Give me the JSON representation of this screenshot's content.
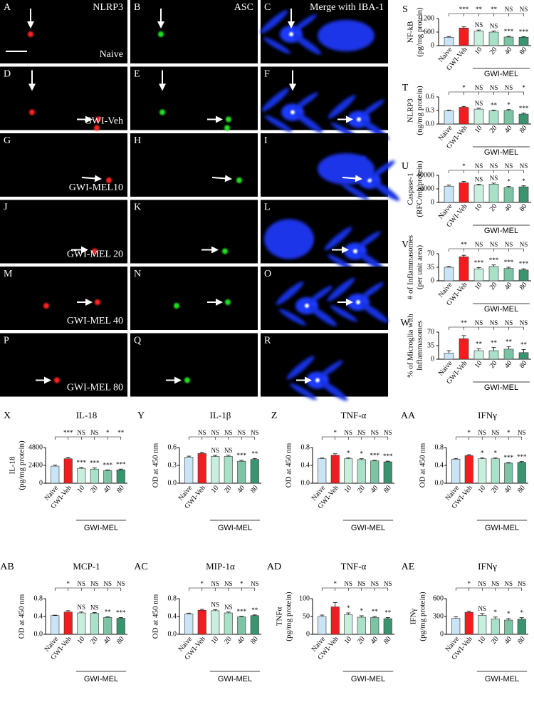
{
  "micrographs": {
    "column_labels": [
      "NLRP3",
      "ASC",
      "Merge with IBA-1"
    ],
    "row_labels": [
      "Naive",
      "GWI-Veh",
      "GWI-MEL10",
      "GWI-MEL 20",
      "GWI-MEL 40",
      "GWI-MEL 80"
    ],
    "panels": [
      [
        "A",
        "B",
        "C"
      ],
      [
        "D",
        "E",
        "F"
      ],
      [
        "G",
        "H",
        "I"
      ],
      [
        "J",
        "K",
        "L"
      ],
      [
        "M",
        "N",
        "O"
      ],
      [
        "P",
        "Q",
        "R"
      ]
    ]
  },
  "chart_data": [
    {
      "type": "bar",
      "letter": "S",
      "ylabel": [
        "NF-kB",
        "(pg/mg protein)"
      ],
      "categories": [
        "Naive",
        "GWI-Veh",
        "10",
        "20",
        "40",
        "80"
      ],
      "group_label": "GWI-MEL",
      "values": [
        370,
        780,
        640,
        600,
        380,
        370
      ],
      "errors": [
        35,
        50,
        50,
        50,
        30,
        30
      ],
      "colors": [
        "#c9e4f6",
        "#f01e1e",
        "#c8eedd",
        "#a9e0c8",
        "#7cc4a4",
        "#3b9470"
      ],
      "ylim": [
        0,
        1200
      ],
      "yticks": [
        0,
        600,
        1200
      ],
      "sig_top": [
        "***",
        "**",
        "**",
        "NS",
        "NS"
      ],
      "sig_bar": [
        "NS",
        "NS",
        "***",
        "***"
      ]
    },
    {
      "type": "bar",
      "letter": "T",
      "ylabel": [
        "NLRP3",
        "(ng/mg protein)"
      ],
      "categories": [
        "Naive",
        "GWI-Veh",
        "10",
        "20",
        "40",
        "80"
      ],
      "group_label": "GWI-MEL",
      "values": [
        0.29,
        0.37,
        0.33,
        0.29,
        0.3,
        0.22
      ],
      "errors": [
        0.02,
        0.02,
        0.02,
        0.02,
        0.02,
        0.02
      ],
      "colors": [
        "#c9e4f6",
        "#f01e1e",
        "#c8eedd",
        "#a9e0c8",
        "#7cc4a4",
        "#3b9470"
      ],
      "ylim": [
        0,
        0.6
      ],
      "yticks": [
        {
          "value": 0,
          "label": "0.0"
        },
        0.3,
        0.6
      ],
      "sig_top": [
        "*",
        "NS",
        "NS",
        "NS",
        "*"
      ],
      "sig_bar": [
        "NS",
        "**",
        "*",
        "***"
      ]
    },
    {
      "type": "bar",
      "letter": "U",
      "ylabel": [
        "Caspase-1",
        "(RFC/mg protein)"
      ],
      "categories": [
        "Naive",
        "GWI-Veh",
        "10",
        "20",
        "40",
        "80"
      ],
      "group_label": "GWI-MEL",
      "values": [
        24000,
        29000,
        25500,
        27000,
        22000,
        23000
      ],
      "errors": [
        1500,
        2000,
        1500,
        1500,
        1500,
        1500
      ],
      "colors": [
        "#c9e4f6",
        "#f01e1e",
        "#c8eedd",
        "#a9e0c8",
        "#7cc4a4",
        "#3b9470"
      ],
      "ylim": [
        0,
        40000
      ],
      "yticks": [
        0,
        20000,
        40000
      ],
      "sig_top": [
        "*",
        "NS",
        "NS",
        "NS",
        "NS"
      ],
      "sig_bar": [
        "NS",
        "NS",
        "*",
        "*"
      ]
    },
    {
      "type": "bar",
      "letter": "V",
      "ylabel": [
        "# of Inflammasomes",
        "(per unit area)"
      ],
      "categories": [
        "Naive",
        "GWI-Veh",
        "10",
        "20",
        "40",
        "80"
      ],
      "group_label": "GWI-MEL",
      "values": [
        35,
        62,
        31,
        37,
        32,
        28
      ],
      "errors": [
        2,
        4,
        3,
        4,
        3,
        3
      ],
      "colors": [
        "#c9e4f6",
        "#f01e1e",
        "#c8eedd",
        "#a9e0c8",
        "#7cc4a4",
        "#3b9470"
      ],
      "ylim": [
        0,
        70
      ],
      "yticks": [
        0,
        35,
        70
      ],
      "sig_top": [
        "**",
        "NS",
        "NS",
        "NS",
        "NS"
      ],
      "sig_bar": [
        "***",
        "***",
        "***",
        "***"
      ]
    },
    {
      "type": "bar",
      "letter": "W",
      "ylabel": [
        "% of Microglia with",
        "Inflammasomes"
      ],
      "categories": [
        "Naive",
        "GWI-Veh",
        "10",
        "20",
        "40",
        "80"
      ],
      "group_label": "GWI-MEL",
      "values": [
        16,
        53,
        22,
        22,
        26,
        17
      ],
      "errors": [
        6,
        8,
        5,
        8,
        6,
        8
      ],
      "colors": [
        "#c9e4f6",
        "#f01e1e",
        "#c8eedd",
        "#a9e0c8",
        "#7cc4a4",
        "#3b9470"
      ],
      "ylim": [
        0,
        70
      ],
      "yticks": [
        0,
        35,
        70
      ],
      "sig_top": [
        "**",
        "NS",
        "NS",
        "NS",
        "NS"
      ],
      "sig_bar": [
        "**",
        "**",
        "**",
        "**"
      ]
    },
    {
      "type": "bar",
      "letter": "X",
      "title": "IL-18",
      "ylabel": [
        "IL-18",
        "(pg/mg protein)"
      ],
      "categories": [
        "Naive",
        "GWI-Veh",
        "10",
        "20",
        "40",
        "80"
      ],
      "group_label": "GWI-MEL",
      "values": [
        2300,
        3300,
        2000,
        1900,
        1700,
        1800
      ],
      "errors": [
        150,
        200,
        120,
        150,
        100,
        100
      ],
      "colors": [
        "#c9e4f6",
        "#f01e1e",
        "#c8eedd",
        "#a9e0c8",
        "#7cc4a4",
        "#3b9470"
      ],
      "ylim": [
        0,
        4800
      ],
      "yticks": [
        0,
        2400,
        4800
      ],
      "sig_top": [
        "***",
        "NS",
        "NS",
        "*",
        "**"
      ],
      "sig_bar": [
        "***",
        "***",
        "***",
        "***"
      ]
    },
    {
      "type": "bar",
      "letter": "Y",
      "title": "IL-1β",
      "ylabel": [
        "OD at 450 nm"
      ],
      "categories": [
        "Naive",
        "GWI-Veh",
        "10",
        "20",
        "40",
        "80"
      ],
      "group_label": "GWI-MEL",
      "values": [
        0.44,
        0.5,
        0.45,
        0.45,
        0.37,
        0.4
      ],
      "errors": [
        0.015,
        0.02,
        0.02,
        0.02,
        0.015,
        0.015
      ],
      "colors": [
        "#c9e4f6",
        "#f01e1e",
        "#c8eedd",
        "#a9e0c8",
        "#7cc4a4",
        "#3b9470"
      ],
      "ylim": [
        0,
        0.6
      ],
      "yticks": [
        {
          "value": 0,
          "label": "0.0"
        },
        0.3,
        0.6
      ],
      "sig_top": [
        "NS",
        "NS",
        "NS",
        "NS",
        "NS"
      ],
      "sig_bar": [
        "NS",
        "NS",
        "***",
        "**"
      ]
    },
    {
      "type": "bar",
      "letter": "Z",
      "title": "TNF-α",
      "ylabel": [
        "OD at 450 nm"
      ],
      "categories": [
        "Naive",
        "GWI-Veh",
        "10",
        "20",
        "40",
        "80"
      ],
      "group_label": "GWI-MEL",
      "values": [
        0.55,
        0.63,
        0.55,
        0.53,
        0.5,
        0.48
      ],
      "errors": [
        0.015,
        0.03,
        0.02,
        0.02,
        0.015,
        0.015
      ],
      "colors": [
        "#c9e4f6",
        "#f01e1e",
        "#c8eedd",
        "#a9e0c8",
        "#7cc4a4",
        "#3b9470"
      ],
      "ylim": [
        0,
        0.8
      ],
      "yticks": [
        {
          "value": 0,
          "label": "0.0"
        },
        0.4,
        0.8
      ],
      "sig_top": [
        "*",
        "NS",
        "NS",
        "NS",
        "NS"
      ],
      "sig_bar": [
        "*",
        "*",
        "***",
        "***"
      ]
    },
    {
      "type": "bar",
      "letter": "AA",
      "title": "IFNγ",
      "ylabel": [
        "OD at 450 nm"
      ],
      "categories": [
        "Naive",
        "GWI-Veh",
        "10",
        "20",
        "40",
        "80"
      ],
      "group_label": "GWI-MEL",
      "values": [
        0.54,
        0.62,
        0.55,
        0.55,
        0.45,
        0.47
      ],
      "errors": [
        0.015,
        0.02,
        0.02,
        0.02,
        0.015,
        0.015
      ],
      "colors": [
        "#c9e4f6",
        "#f01e1e",
        "#c8eedd",
        "#a9e0c8",
        "#7cc4a4",
        "#3b9470"
      ],
      "ylim": [
        0,
        0.8
      ],
      "yticks": [
        {
          "value": 0,
          "label": "0.0"
        },
        0.4,
        0.8
      ],
      "sig_top": [
        "*",
        "NS",
        "NS",
        "*",
        "NS"
      ],
      "sig_bar": [
        "*",
        "*",
        "***",
        "***"
      ]
    },
    {
      "type": "bar",
      "letter": "AB",
      "title": "MCP-1",
      "ylabel": [
        "OD at 450 nm"
      ],
      "categories": [
        "Naive",
        "GWI-Veh",
        "10",
        "20",
        "40",
        "80"
      ],
      "group_label": "GWI-MEL",
      "values": [
        0.42,
        0.5,
        0.48,
        0.47,
        0.38,
        0.36
      ],
      "errors": [
        0.01,
        0.03,
        0.02,
        0.02,
        0.015,
        0.015
      ],
      "colors": [
        "#c9e4f6",
        "#f01e1e",
        "#c8eedd",
        "#a9e0c8",
        "#7cc4a4",
        "#3b9470"
      ],
      "ylim": [
        0,
        0.8
      ],
      "yticks": [
        {
          "value": 0,
          "label": "0.0"
        },
        0.4,
        0.8
      ],
      "sig_top": [
        "*",
        "NS",
        "NS",
        "NS",
        "NS"
      ],
      "sig_bar": [
        "NS",
        "NS",
        "**",
        "***"
      ]
    },
    {
      "type": "bar",
      "letter": "AC",
      "title": "MIP-1α",
      "ylabel": [
        "OD at 450 nm"
      ],
      "categories": [
        "Naive",
        "GWI-Veh",
        "10",
        "20",
        "40",
        "80"
      ],
      "group_label": "GWI-MEL",
      "values": [
        0.46,
        0.54,
        0.53,
        0.48,
        0.39,
        0.42
      ],
      "errors": [
        0.015,
        0.02,
        0.02,
        0.02,
        0.015,
        0.015
      ],
      "colors": [
        "#c9e4f6",
        "#f01e1e",
        "#c8eedd",
        "#a9e0c8",
        "#7cc4a4",
        "#3b9470"
      ],
      "ylim": [
        0,
        0.8
      ],
      "yticks": [
        {
          "value": 0,
          "label": "0.0"
        },
        0.4,
        0.8
      ],
      "sig_top": [
        "*",
        "NS",
        "NS",
        "*",
        "NS"
      ],
      "sig_bar": [
        "NS",
        "NS",
        "***",
        "**"
      ]
    },
    {
      "type": "bar",
      "letter": "AD",
      "title": "TNF-α",
      "ylabel": [
        "TNFα",
        "(pg/mg protein)"
      ],
      "categories": [
        "Naive",
        "GWI-Veh",
        "10",
        "20",
        "40",
        "80"
      ],
      "group_label": "GWI-MEL",
      "values": [
        50,
        77,
        55,
        48,
        47,
        44
      ],
      "errors": [
        4,
        12,
        5,
        4,
        3,
        3
      ],
      "colors": [
        "#c9e4f6",
        "#f01e1e",
        "#c8eedd",
        "#a9e0c8",
        "#7cc4a4",
        "#3b9470"
      ],
      "ylim": [
        0,
        100
      ],
      "yticks": [
        0,
        50,
        100
      ],
      "sig_top": [
        "*",
        "NS",
        "NS",
        "NS",
        "NS"
      ],
      "sig_bar": [
        "*",
        "*",
        "**",
        "**"
      ]
    },
    {
      "type": "bar",
      "letter": "AE",
      "title": "IFNγ",
      "ylabel": [
        "IFNγ",
        "(pg/mg protein)"
      ],
      "categories": [
        "Naive",
        "GWI-Veh",
        "10",
        "20",
        "40",
        "80"
      ],
      "group_label": "GWI-MEL",
      "values": [
        270,
        370,
        320,
        260,
        240,
        255
      ],
      "errors": [
        25,
        20,
        30,
        30,
        25,
        25
      ],
      "colors": [
        "#c9e4f6",
        "#f01e1e",
        "#c8eedd",
        "#a9e0c8",
        "#7cc4a4",
        "#3b9470"
      ],
      "ylim": [
        0,
        600
      ],
      "yticks": [
        0,
        300,
        600
      ],
      "sig_top": [
        "*",
        "NS",
        "NS",
        "NS",
        "NS"
      ],
      "sig_bar": [
        "NS",
        "*",
        "*",
        "*"
      ]
    }
  ]
}
